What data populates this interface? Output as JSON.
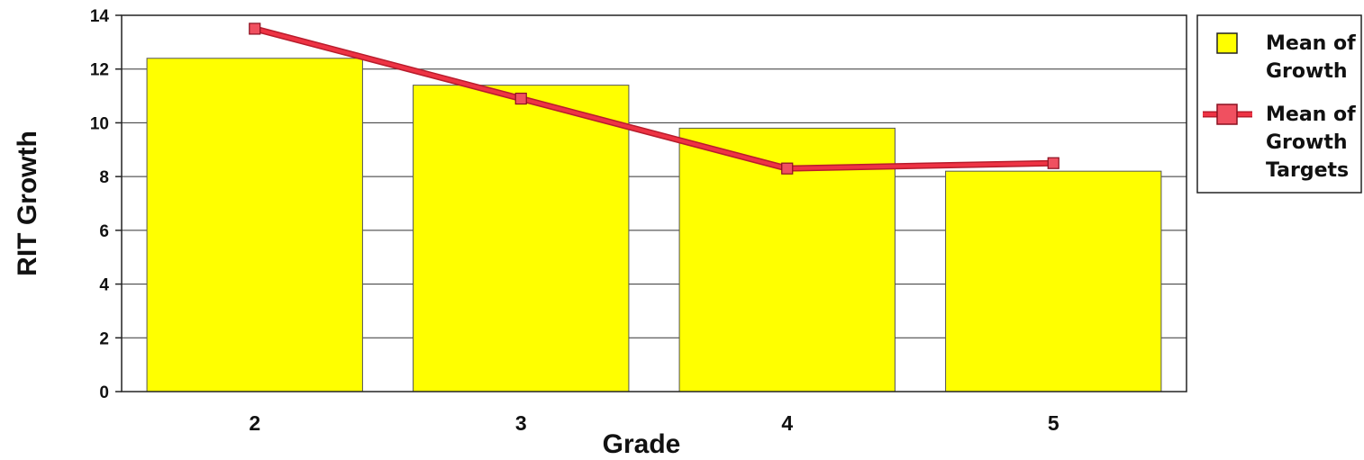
{
  "chart_data": {
    "type": "bar",
    "categories": [
      "2",
      "3",
      "4",
      "5"
    ],
    "series": [
      {
        "name": "Mean of Growth",
        "kind": "bar",
        "color": "#ffff00",
        "values": [
          12.4,
          11.4,
          9.8,
          8.2
        ]
      },
      {
        "name": "Mean of Growth Targets",
        "kind": "line",
        "color": "#ee3344",
        "values": [
          13.5,
          10.9,
          8.3,
          8.5
        ]
      }
    ],
    "title": "",
    "xlabel": "Grade",
    "ylabel": "RIT Growth",
    "ylim": [
      0,
      14
    ],
    "yticks": [
      0,
      2,
      4,
      6,
      8,
      10,
      12,
      14
    ],
    "grid": true,
    "legend_position": "right",
    "legend_labels": [
      [
        "Mean of",
        "Growth"
      ],
      [
        "Mean of",
        "Growth",
        "Targets"
      ]
    ]
  }
}
